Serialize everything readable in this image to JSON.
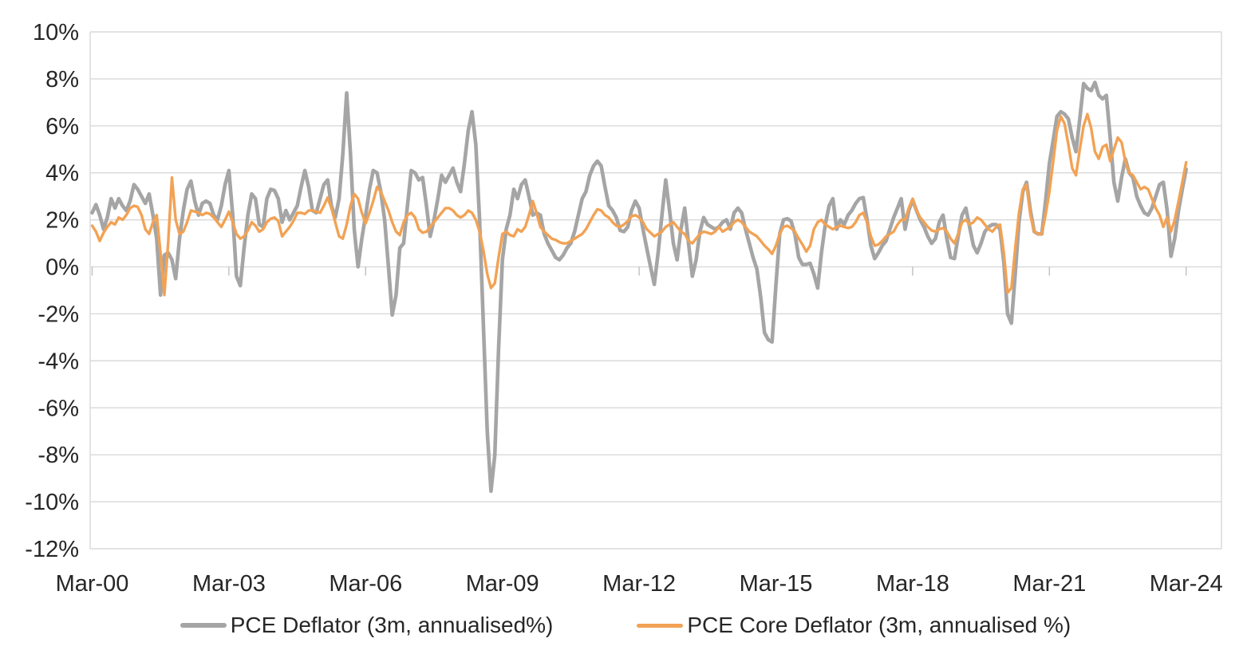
{
  "chart_data": {
    "type": "line",
    "title": "",
    "frequency": "monthly",
    "start_month": "Mar-00",
    "end_month": "Mar-24",
    "grid": true,
    "legend_position": "bottom",
    "x_axis": {
      "tick_labels": [
        "Mar-00",
        "Mar-03",
        "Mar-06",
        "Mar-09",
        "Mar-12",
        "Mar-15",
        "Mar-18",
        "Mar-21",
        "Mar-24"
      ],
      "months_per_tick": 36
    },
    "y_axis": {
      "min": -12,
      "max": 10,
      "step": 2,
      "suffix": "%",
      "tick_labels": [
        "10%",
        "8%",
        "6%",
        "4%",
        "2%",
        "0%",
        "-2%",
        "-4%",
        "-6%",
        "-8%",
        "-10%",
        "-12%"
      ]
    },
    "ylim": [
      -12,
      10
    ],
    "colors": {
      "grid": "#D9D9D9",
      "tick": "#BFBFBF",
      "axis_text": "#262626",
      "series_gray": "#A5A5A5",
      "series_orange": "#F2A254"
    },
    "series": [
      {
        "name": "PCE Deflator (3m, annualised%)",
        "color": "#A5A5A5",
        "stroke_width": 4.6,
        "values": [
          2.3,
          2.65,
          2.2,
          1.6,
          2.1,
          2.9,
          2.5,
          2.9,
          2.6,
          2.4,
          2.8,
          3.5,
          3.3,
          3.0,
          2.7,
          3.1,
          2.2,
          1.2,
          -1.2,
          0.5,
          0.6,
          0.3,
          -0.5,
          1.2,
          2.4,
          3.3,
          3.65,
          2.8,
          2.2,
          2.7,
          2.8,
          2.7,
          2.2,
          2.0,
          2.6,
          3.5,
          4.1,
          2.2,
          -0.4,
          -0.8,
          0.8,
          2.2,
          3.1,
          2.9,
          1.8,
          1.7,
          2.9,
          3.3,
          3.25,
          2.9,
          1.9,
          2.4,
          2.0,
          2.3,
          2.6,
          3.4,
          4.1,
          3.4,
          2.4,
          2.3,
          2.9,
          3.5,
          3.7,
          2.6,
          2.1,
          2.9,
          4.8,
          7.4,
          4.8,
          1.6,
          0.0,
          1.2,
          2.2,
          3.3,
          4.1,
          4.0,
          3.2,
          2.0,
          0.0,
          -2.05,
          -1.2,
          0.8,
          1.0,
          2.6,
          4.1,
          4.0,
          3.7,
          3.8,
          2.6,
          1.3,
          2.0,
          2.9,
          3.9,
          3.6,
          3.9,
          4.2,
          3.6,
          3.2,
          4.4,
          5.8,
          6.6,
          5.2,
          2.0,
          -2.5,
          -7.0,
          -9.55,
          -8.0,
          -3.5,
          0.3,
          1.6,
          2.2,
          3.3,
          2.9,
          3.5,
          3.7,
          3.0,
          2.2,
          2.3,
          2.2,
          1.4,
          1.0,
          0.7,
          0.4,
          0.3,
          0.5,
          0.8,
          1.0,
          1.5,
          2.2,
          2.9,
          3.2,
          3.9,
          4.3,
          4.5,
          4.3,
          3.4,
          2.6,
          2.4,
          2.1,
          1.55,
          1.5,
          1.7,
          2.4,
          2.8,
          2.5,
          1.6,
          0.8,
          0.0,
          -0.75,
          0.6,
          2.2,
          3.7,
          2.4,
          1.0,
          0.3,
          1.6,
          2.5,
          1.0,
          -0.4,
          0.3,
          1.5,
          2.1,
          1.8,
          1.7,
          1.6,
          1.7,
          1.9,
          2.0,
          1.6,
          2.3,
          2.5,
          2.3,
          1.6,
          1.0,
          0.4,
          -0.1,
          -1.3,
          -2.8,
          -3.1,
          -3.2,
          -0.8,
          1.4,
          2.0,
          2.05,
          1.95,
          1.4,
          0.4,
          0.1,
          0.1,
          0.15,
          -0.3,
          -0.9,
          0.6,
          1.8,
          2.6,
          2.9,
          1.6,
          2.0,
          1.8,
          2.2,
          2.4,
          2.7,
          2.9,
          2.95,
          2.0,
          0.9,
          0.35,
          0.6,
          0.9,
          1.1,
          1.6,
          2.1,
          2.5,
          2.9,
          1.6,
          2.4,
          2.85,
          2.4,
          2.0,
          1.7,
          1.3,
          1.0,
          1.2,
          1.9,
          2.2,
          1.2,
          0.4,
          0.35,
          1.3,
          2.2,
          2.5,
          1.7,
          0.9,
          0.6,
          1.0,
          1.5,
          1.7,
          1.8,
          1.8,
          1.6,
          0.2,
          -2.0,
          -2.4,
          -0.3,
          1.9,
          3.2,
          3.6,
          2.4,
          1.5,
          1.4,
          1.4,
          2.8,
          4.4,
          5.4,
          6.4,
          6.6,
          6.5,
          6.3,
          5.5,
          4.9,
          6.3,
          7.8,
          7.6,
          7.5,
          7.85,
          7.3,
          7.15,
          7.3,
          5.5,
          3.6,
          2.8,
          3.8,
          4.6,
          4.0,
          3.8,
          3.0,
          2.6,
          2.3,
          2.2,
          2.5,
          3.0,
          3.5,
          3.6,
          2.4,
          0.45,
          1.2,
          2.4,
          3.3,
          4.15
        ]
      },
      {
        "name": "PCE Core Deflator (3m, annualised %)",
        "color": "#F2A254",
        "stroke_width": 3.4,
        "values": [
          1.75,
          1.5,
          1.1,
          1.45,
          1.7,
          1.9,
          1.8,
          2.1,
          2.0,
          2.2,
          2.5,
          2.6,
          2.55,
          2.2,
          1.6,
          1.4,
          1.9,
          2.2,
          0.6,
          -1.2,
          1.0,
          3.8,
          2.0,
          1.4,
          1.5,
          1.9,
          2.4,
          2.35,
          2.3,
          2.2,
          2.3,
          2.25,
          2.1,
          1.9,
          1.7,
          2.0,
          2.35,
          1.9,
          1.4,
          1.2,
          1.3,
          1.55,
          1.9,
          1.75,
          1.5,
          1.6,
          1.9,
          2.05,
          2.1,
          1.95,
          1.3,
          1.5,
          1.7,
          1.95,
          2.3,
          2.3,
          2.25,
          2.4,
          2.4,
          2.35,
          2.3,
          2.6,
          2.95,
          2.5,
          1.9,
          1.3,
          1.2,
          1.8,
          2.6,
          3.1,
          2.9,
          2.3,
          1.85,
          2.3,
          2.8,
          3.4,
          3.2,
          2.8,
          2.4,
          1.9,
          1.5,
          1.35,
          1.9,
          2.2,
          2.3,
          2.1,
          1.6,
          1.45,
          1.5,
          1.7,
          1.9,
          2.1,
          2.3,
          2.5,
          2.5,
          2.4,
          2.2,
          2.1,
          2.2,
          2.4,
          2.3,
          2.0,
          1.5,
          0.7,
          -0.3,
          -0.9,
          -0.7,
          0.4,
          1.4,
          1.5,
          1.35,
          1.3,
          1.6,
          1.5,
          1.7,
          2.2,
          2.8,
          2.3,
          1.7,
          1.5,
          1.35,
          1.2,
          1.15,
          1.05,
          1.0,
          1.0,
          1.1,
          1.2,
          1.3,
          1.4,
          1.6,
          1.9,
          2.2,
          2.45,
          2.4,
          2.2,
          2.1,
          1.9,
          1.75,
          1.7,
          1.8,
          1.95,
          2.15,
          2.2,
          2.1,
          1.9,
          1.6,
          1.45,
          1.3,
          1.4,
          1.5,
          1.7,
          1.8,
          1.9,
          1.7,
          1.5,
          1.4,
          1.1,
          1.0,
          1.2,
          1.4,
          1.5,
          1.45,
          1.4,
          1.5,
          1.7,
          1.5,
          1.6,
          1.7,
          1.9,
          2.0,
          1.9,
          1.7,
          1.5,
          1.4,
          1.3,
          1.1,
          0.9,
          0.75,
          0.55,
          0.9,
          1.4,
          1.7,
          1.75,
          1.65,
          1.5,
          1.2,
          0.95,
          0.65,
          0.9,
          1.6,
          1.9,
          2.0,
          1.8,
          1.7,
          1.6,
          1.7,
          1.75,
          1.7,
          1.65,
          1.7,
          1.9,
          2.2,
          2.3,
          1.9,
          1.3,
          0.9,
          0.95,
          1.1,
          1.3,
          1.4,
          1.5,
          1.8,
          2.0,
          2.0,
          2.5,
          2.9,
          2.4,
          2.1,
          1.9,
          1.7,
          1.55,
          1.5,
          1.6,
          1.65,
          1.5,
          1.2,
          1.0,
          1.4,
          1.9,
          2.0,
          1.8,
          1.9,
          2.1,
          2.0,
          1.8,
          1.6,
          1.5,
          1.7,
          1.8,
          0.6,
          -1.1,
          -0.9,
          0.8,
          2.3,
          3.3,
          3.5,
          2.2,
          1.5,
          1.4,
          1.4,
          2.2,
          3.2,
          4.5,
          5.8,
          6.4,
          6.1,
          5.2,
          4.2,
          3.9,
          5.0,
          6.0,
          6.5,
          5.9,
          4.9,
          4.6,
          5.1,
          5.2,
          4.5,
          5.0,
          5.5,
          5.3,
          4.5,
          4.0,
          3.9,
          3.6,
          3.3,
          3.4,
          3.3,
          2.9,
          2.5,
          2.2,
          1.7,
          2.1,
          1.5,
          2.0,
          2.8,
          3.6,
          4.45
        ]
      }
    ]
  },
  "legend": {
    "items": [
      {
        "label": "PCE Deflator (3m, annualised%)",
        "color": "#A5A5A5"
      },
      {
        "label": "PCE Core Deflator (3m, annualised %)",
        "color": "#F2A254"
      }
    ]
  }
}
